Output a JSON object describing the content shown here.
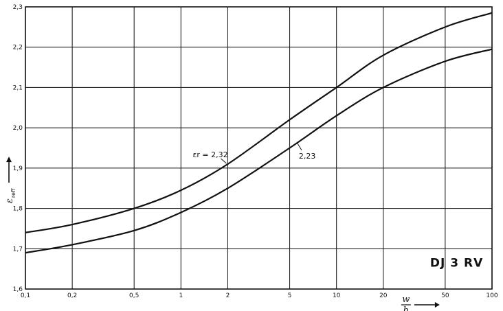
{
  "chart_data": {
    "type": "line",
    "x_scale": "log",
    "xlim": [
      0.1,
      100
    ],
    "ylim": [
      1.6,
      2.3
    ],
    "grid": true,
    "x_ticks": [
      0.1,
      0.2,
      0.5,
      1,
      2,
      5,
      10,
      20,
      50,
      100
    ],
    "x_tick_labels": [
      "0,1",
      "0,2",
      "0,5",
      "1",
      "2",
      "5",
      "10",
      "20",
      "50",
      "100"
    ],
    "y_ticks": [
      1.6,
      1.7,
      1.8,
      1.9,
      2.0,
      2.1,
      2.2,
      2.3
    ],
    "y_tick_labels": [
      "1,6",
      "1,7",
      "1,8",
      "1,9",
      "2,0",
      "2,1",
      "2,2",
      "2,3"
    ],
    "xlabel": {
      "numerator": "w",
      "denominator": "h"
    },
    "ylabel": {
      "main": "ε",
      "sub": "reff"
    },
    "series": [
      {
        "name": "εr = 2,32",
        "x": [
          0.1,
          0.2,
          0.5,
          1,
          2,
          5,
          10,
          20,
          50,
          100
        ],
        "y": [
          1.74,
          1.76,
          1.8,
          1.845,
          1.91,
          2.02,
          2.1,
          2.18,
          2.25,
          2.285
        ]
      },
      {
        "name": "2,23",
        "x": [
          0.1,
          0.2,
          0.5,
          1,
          2,
          5,
          10,
          20,
          50,
          100
        ],
        "y": [
          1.69,
          1.71,
          1.745,
          1.79,
          1.85,
          1.95,
          2.03,
          2.1,
          2.165,
          2.195
        ]
      }
    ],
    "annotations": [
      {
        "text": "εr = 2,32"
      },
      {
        "text": "2,23"
      }
    ],
    "inset_label": "DJ 3 RV"
  }
}
